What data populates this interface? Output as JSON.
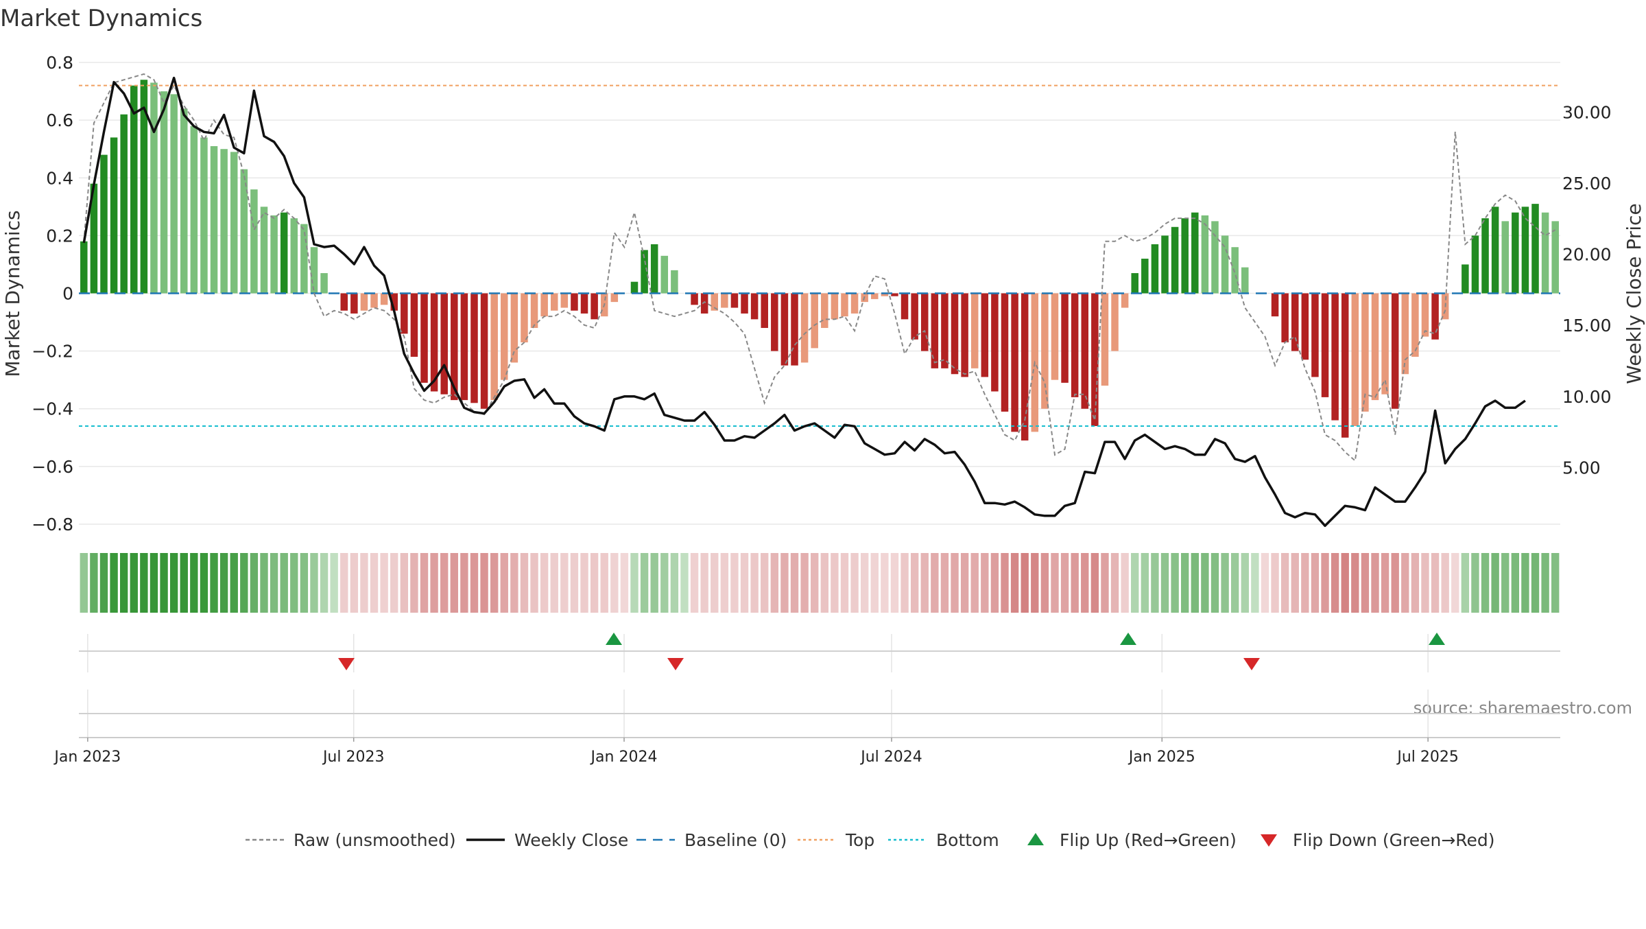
{
  "chart_data": {
    "type": "bar",
    "title": "Market Dynamics",
    "source": "source: sharemaestro.com",
    "ylabel_left": "Market Dynamics",
    "ylabel_right": "Weekly Close Price",
    "ylim_left": [
      -0.85,
      0.85
    ],
    "ylim_right": [
      0,
      34.5
    ],
    "yticks_left": [
      {
        "value": 0.8,
        "label": "0.8"
      },
      {
        "value": 0.6,
        "label": "0.6"
      },
      {
        "value": 0.4,
        "label": "0.4"
      },
      {
        "value": 0.2,
        "label": "0.2"
      },
      {
        "value": 0,
        "label": "0"
      },
      {
        "value": -0.2,
        "label": "−0.2"
      },
      {
        "value": -0.4,
        "label": "−0.4"
      },
      {
        "value": -0.6,
        "label": "−0.6"
      },
      {
        "value": -0.8,
        "label": "−0.8"
      }
    ],
    "yticks_right": [
      {
        "value": 30,
        "label": "30.00"
      },
      {
        "value": 25,
        "label": "25.00"
      },
      {
        "value": 20,
        "label": "20.00"
      },
      {
        "value": 15,
        "label": "15.00"
      },
      {
        "value": 10,
        "label": "10.00"
      },
      {
        "value": 5,
        "label": "5.00"
      }
    ],
    "x_start": "2022-12-26",
    "x_end": "2025-09-29",
    "xticks": [
      {
        "date": "2023-01-01",
        "label": "Jan 2023"
      },
      {
        "date": "2023-07-01",
        "label": "Jul 2023"
      },
      {
        "date": "2024-01-01",
        "label": "Jan 2024"
      },
      {
        "date": "2024-07-01",
        "label": "Jul 2024"
      },
      {
        "date": "2025-01-01",
        "label": "Jan 2025"
      },
      {
        "date": "2025-07-01",
        "label": "Jul 2025"
      }
    ],
    "top_line": 0.72,
    "bottom_line": -0.46,
    "baseline": 0,
    "bars": [
      0.18,
      0.38,
      0.48,
      0.54,
      0.62,
      0.72,
      0.74,
      0.73,
      0.7,
      0.69,
      0.64,
      0.58,
      0.54,
      0.51,
      0.5,
      0.49,
      0.43,
      0.36,
      0.3,
      0.27,
      0.28,
      0.26,
      0.24,
      0.16,
      0.07,
      0,
      -0.06,
      -0.07,
      -0.06,
      -0.05,
      -0.04,
      -0.06,
      -0.14,
      -0.22,
      -0.31,
      -0.34,
      -0.35,
      -0.37,
      -0.37,
      -0.38,
      -0.4,
      -0.37,
      -0.3,
      -0.24,
      -0.17,
      -0.12,
      -0.08,
      -0.06,
      -0.05,
      -0.06,
      -0.07,
      -0.09,
      -0.08,
      -0.03,
      0.0,
      0.04,
      0.15,
      0.17,
      0.13,
      0.08,
      0.0,
      -0.04,
      -0.07,
      -0.06,
      -0.05,
      -0.05,
      -0.07,
      -0.09,
      -0.12,
      -0.2,
      -0.25,
      -0.25,
      -0.24,
      -0.19,
      -0.12,
      -0.09,
      -0.08,
      -0.07,
      -0.03,
      -0.02,
      -0.01,
      -0.01,
      -0.09,
      -0.16,
      -0.2,
      -0.26,
      -0.26,
      -0.28,
      -0.29,
      -0.26,
      -0.29,
      -0.34,
      -0.41,
      -0.48,
      -0.51,
      -0.48,
      -0.4,
      -0.3,
      -0.31,
      -0.36,
      -0.4,
      -0.46,
      -0.32,
      -0.2,
      -0.05,
      0.07,
      0.12,
      0.17,
      0.2,
      0.23,
      0.26,
      0.28,
      0.27,
      0.25,
      0.2,
      0.16,
      0.09,
      0.0,
      0.0,
      -0.08,
      -0.17,
      -0.2,
      -0.23,
      -0.29,
      -0.36,
      -0.44,
      -0.5,
      -0.46,
      -0.41,
      -0.37,
      -0.35,
      -0.4,
      -0.28,
      -0.22,
      -0.15,
      -0.16,
      -0.09,
      0.0,
      0.1,
      0.2,
      0.26,
      0.3,
      0.25,
      0.28,
      0.3,
      0.31,
      0.28,
      0.25
    ],
    "raw": [
      0.18,
      0.59,
      0.66,
      0.73,
      0.74,
      0.75,
      0.76,
      0.74,
      0.66,
      0.72,
      0.65,
      0.6,
      0.53,
      0.6,
      0.55,
      0.54,
      0.41,
      0.22,
      0.28,
      0.26,
      0.29,
      0.26,
      0.22,
      0.0,
      -0.08,
      -0.06,
      -0.07,
      -0.09,
      -0.07,
      -0.05,
      -0.06,
      -0.09,
      -0.15,
      -0.33,
      -0.37,
      -0.38,
      -0.36,
      -0.35,
      -0.38,
      -0.41,
      -0.42,
      -0.36,
      -0.3,
      -0.2,
      -0.17,
      -0.11,
      -0.08,
      -0.08,
      -0.06,
      -0.08,
      -0.11,
      -0.12,
      -0.04,
      0.21,
      0.16,
      0.28,
      0.12,
      -0.06,
      -0.07,
      -0.08,
      -0.07,
      -0.06,
      -0.03,
      -0.05,
      -0.07,
      -0.1,
      -0.14,
      -0.26,
      -0.38,
      -0.29,
      -0.25,
      -0.18,
      -0.14,
      -0.11,
      -0.09,
      -0.09,
      -0.08,
      -0.13,
      -0.01,
      0.06,
      0.05,
      -0.07,
      -0.21,
      -0.15,
      -0.13,
      -0.24,
      -0.23,
      -0.26,
      -0.28,
      -0.27,
      -0.35,
      -0.42,
      -0.49,
      -0.51,
      -0.44,
      -0.24,
      -0.31,
      -0.56,
      -0.54,
      -0.35,
      -0.35,
      -0.44,
      0.18,
      0.18,
      0.2,
      0.18,
      0.19,
      0.21,
      0.24,
      0.26,
      0.26,
      0.26,
      0.24,
      0.2,
      0.16,
      0.07,
      -0.05,
      -0.1,
      -0.15,
      -0.25,
      -0.17,
      -0.15,
      -0.26,
      -0.34,
      -0.49,
      -0.51,
      -0.55,
      -0.58,
      -0.35,
      -0.36,
      -0.3,
      -0.49,
      -0.23,
      -0.2,
      -0.13,
      -0.14,
      -0.06,
      0.56,
      0.17,
      0.2,
      0.26,
      0.31,
      0.34,
      0.32,
      0.26,
      0.23,
      0.2,
      0.22
    ],
    "close": [
      20.8,
      24.9,
      28.6,
      32.1,
      31.3,
      29.9,
      30.3,
      28.6,
      30.2,
      32.4,
      29.8,
      29.0,
      28.6,
      28.5,
      29.8,
      27.5,
      27.1,
      31.5,
      28.3,
      27.9,
      26.9,
      25.0,
      24.0,
      20.7,
      20.5,
      20.6,
      20.0,
      19.3,
      20.5,
      19.2,
      18.5,
      16.0,
      13.0,
      11.6,
      10.4,
      11.1,
      12.2,
      10.6,
      9.2,
      8.9,
      8.8,
      9.6,
      10.7,
      11.1,
      11.2,
      9.9,
      10.5,
      9.5,
      9.5,
      8.6,
      8.1,
      7.9,
      7.6,
      9.8,
      10.0,
      10.0,
      9.8,
      10.2,
      8.7,
      8.5,
      8.3,
      8.3,
      8.9,
      8.0,
      6.9,
      6.9,
      7.2,
      7.1,
      7.6,
      8.1,
      8.7,
      7.6,
      7.9,
      8.1,
      7.6,
      7.1,
      8.0,
      7.9,
      6.7,
      6.3,
      5.9,
      6.0,
      6.8,
      6.2,
      7.0,
      6.6,
      6.0,
      6.1,
      5.2,
      4.0,
      2.5,
      2.5,
      2.4,
      2.6,
      2.2,
      1.7,
      1.6,
      1.6,
      2.3,
      2.5,
      4.7,
      4.6,
      6.8,
      6.8,
      5.6,
      6.9,
      7.3,
      6.8,
      6.3,
      6.5,
      6.3,
      5.9,
      5.9,
      7.0,
      6.7,
      5.6,
      5.4,
      5.8,
      4.3,
      3.1,
      1.8,
      1.5,
      1.8,
      1.7,
      0.9,
      1.6,
      2.3,
      2.2,
      2.0,
      3.6,
      3.1,
      2.6,
      2.6,
      3.6,
      4.7,
      9.0,
      5.3,
      6.3,
      7.0,
      8.1,
      9.3,
      9.7,
      9.2,
      9.2,
      9.7
    ],
    "flips": [
      {
        "date": "2023-06-26",
        "direction": "down"
      },
      {
        "date": "2023-12-25",
        "direction": "up"
      },
      {
        "date": "2024-02-05",
        "direction": "down"
      },
      {
        "date": "2024-12-09",
        "direction": "up"
      },
      {
        "date": "2025-03-03",
        "direction": "down"
      },
      {
        "date": "2025-07-07",
        "direction": "up"
      }
    ],
    "legend": [
      {
        "label": "Raw (unsmoothed)",
        "kind": "line-dashed",
        "color": "#888888"
      },
      {
        "label": "Weekly Close",
        "kind": "line-solid",
        "color": "#111111"
      },
      {
        "label": "Baseline (0)",
        "kind": "line-longdash",
        "color": "#1f77b4"
      },
      {
        "label": "Top",
        "kind": "line-dotted",
        "color": "#f0a060"
      },
      {
        "label": "Bottom",
        "kind": "line-dotted",
        "color": "#17becf"
      },
      {
        "label": "Flip Up (Red→Green)",
        "kind": "triangle-up",
        "color": "#1a9641"
      },
      {
        "label": "Flip Down (Green→Red)",
        "kind": "triangle-down",
        "color": "#d62728"
      }
    ],
    "colors": {
      "green_strong": "#228b22",
      "green_light": "#7bbf7b",
      "red_strong": "#b22222",
      "red_light": "#e8997a",
      "close": "#111111",
      "raw": "#888888",
      "baseline": "#1f77b4",
      "top": "#f0a060",
      "bottom": "#17becf",
      "grid": "#e8e8e8"
    }
  }
}
